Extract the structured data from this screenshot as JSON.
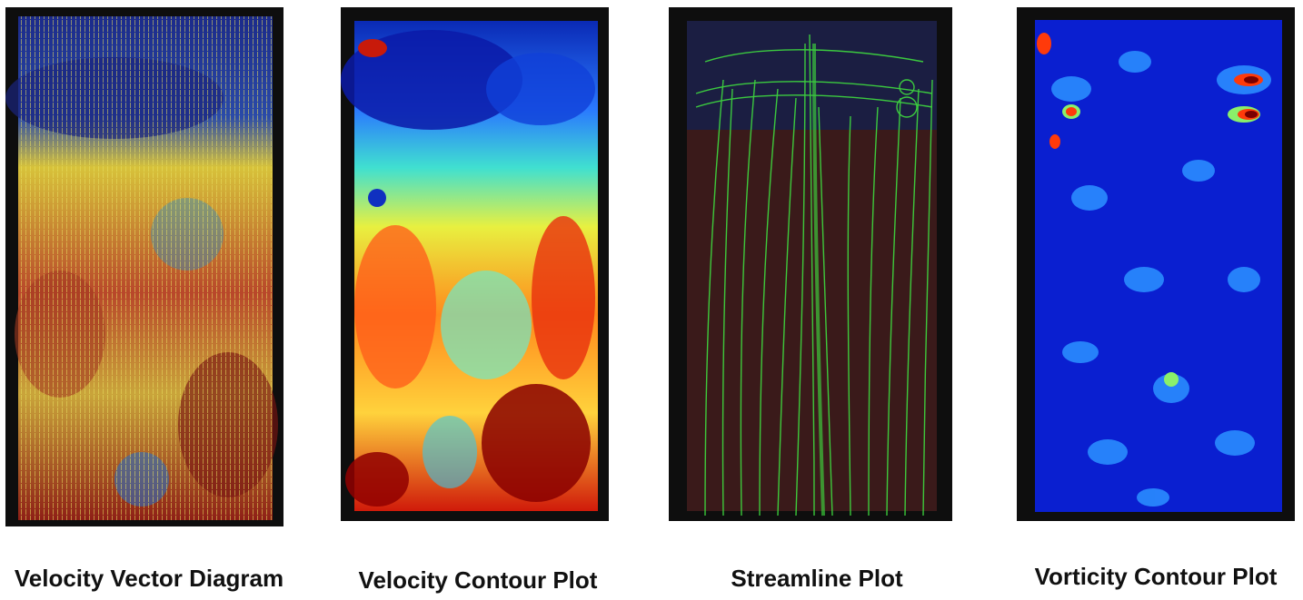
{
  "panels": [
    {
      "id": "velocity-vector-diagram",
      "caption": "Velocity Vector Diagram"
    },
    {
      "id": "velocity-contour-plot",
      "caption": "Velocity Contour Plot"
    },
    {
      "id": "streamline-plot",
      "caption": "Streamline Plot"
    },
    {
      "id": "vorticity-contour-plot",
      "caption": "Vorticity Contour Plot"
    }
  ],
  "colors": {
    "jet_low": "#00008f",
    "jet_mid": "#7fff7f",
    "jet_high": "#800000",
    "streamline_green": "#3fdc3f",
    "background": "#ffffff",
    "frame": "#0e0e0e"
  }
}
